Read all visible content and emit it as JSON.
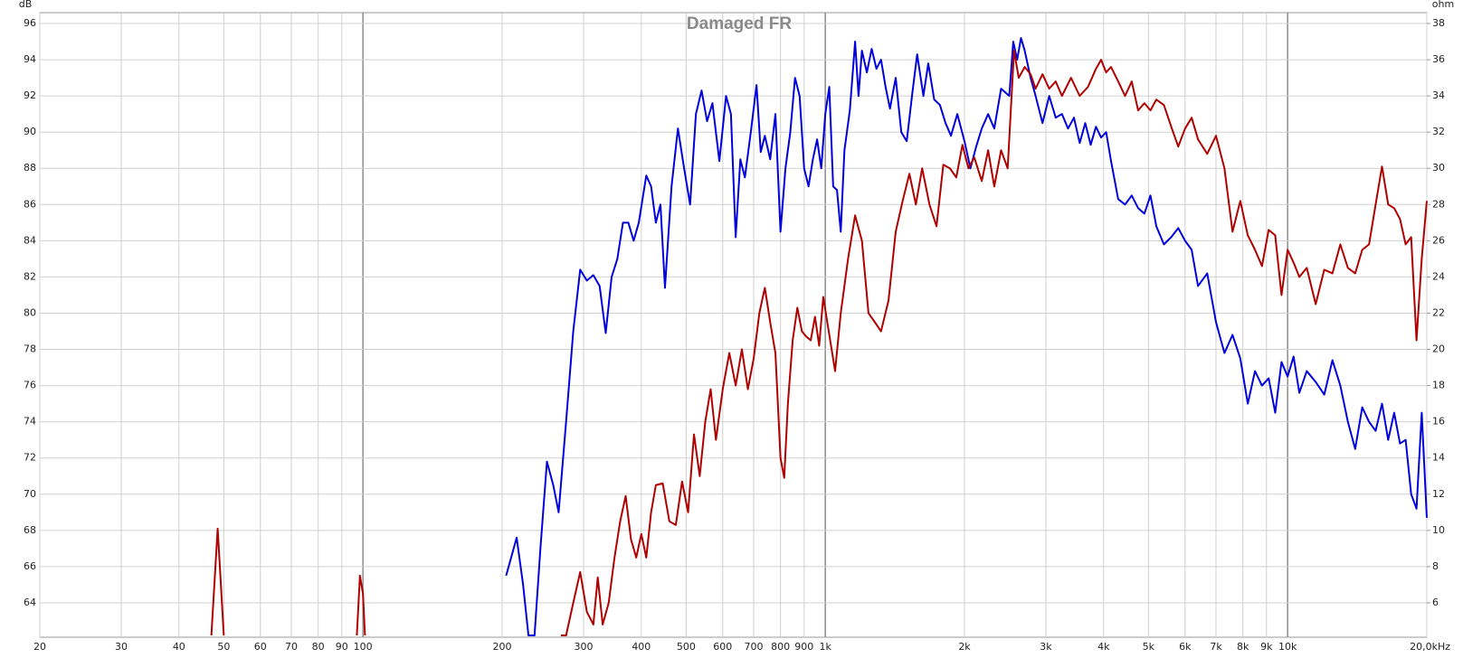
{
  "chart_data": {
    "type": "line",
    "title": "Damaged FR",
    "ylabel": "dB",
    "y2label": "ohm",
    "xscale": "log",
    "grid": true,
    "xlim": [
      20,
      20000
    ],
    "xticks": [
      20,
      30,
      40,
      50,
      60,
      70,
      80,
      90,
      100,
      200,
      300,
      400,
      500,
      600,
      700,
      800,
      900,
      {
        "value": 1000,
        "label": "1k"
      },
      {
        "value": 2000,
        "label": "2k"
      },
      {
        "value": 3000,
        "label": "3k"
      },
      {
        "value": 4000,
        "label": "4k"
      },
      {
        "value": 5000,
        "label": "5k"
      },
      {
        "value": 6000,
        "label": "6k"
      },
      {
        "value": 7000,
        "label": "7k"
      },
      {
        "value": 8000,
        "label": "8k"
      },
      {
        "value": 9000,
        "label": "9k"
      },
      {
        "value": 10000,
        "label": "10k"
      },
      {
        "value": 20000,
        "label": "20,0kHz"
      }
    ],
    "ylim": [
      62.1,
      96.6
    ],
    "yticks": [
      64,
      66,
      68,
      70,
      72,
      74,
      76,
      78,
      80,
      82,
      84,
      86,
      88,
      90,
      92,
      94,
      96
    ],
    "y2lim": [
      4.1,
      38.6
    ],
    "y2ticks": [
      6,
      8,
      10,
      12,
      14,
      16,
      18,
      20,
      22,
      24,
      26,
      28,
      30,
      32,
      34,
      36,
      38
    ],
    "series": [
      {
        "color": "#0000dd",
        "x": [
          204,
          215,
          222,
          228,
          235,
          242,
          250,
          258,
          265,
          275,
          285,
          295,
          305,
          315,
          325,
          335,
          345,
          355,
          365,
          375,
          385,
          395,
          410,
          420,
          430,
          440,
          450,
          465,
          480,
          495,
          510,
          525,
          540,
          555,
          570,
          590,
          610,
          625,
          640,
          655,
          670,
          690,
          710,
          725,
          740,
          760,
          780,
          800,
          820,
          840,
          860,
          880,
          900,
          920,
          940,
          960,
          980,
          1000,
          1020,
          1040,
          1060,
          1080,
          1100,
          1130,
          1160,
          1180,
          1200,
          1230,
          1260,
          1290,
          1320,
          1350,
          1380,
          1420,
          1460,
          1500,
          1540,
          1580,
          1630,
          1670,
          1720,
          1770,
          1820,
          1870,
          1930,
          2000,
          2060,
          2120,
          2180,
          2250,
          2320,
          2400,
          2500,
          2550,
          2600,
          2650,
          2700,
          2780,
          2850,
          2950,
          3050,
          3150,
          3250,
          3350,
          3450,
          3550,
          3650,
          3750,
          3850,
          3950,
          4050,
          4150,
          4300,
          4450,
          4600,
          4750,
          4900,
          5050,
          5200,
          5400,
          5600,
          5800,
          6000,
          6200,
          6400,
          6700,
          7000,
          7300,
          7600,
          7900,
          8200,
          8500,
          8800,
          9100,
          9400,
          9700,
          10000,
          10300,
          10600,
          11000,
          11500,
          12000,
          12500,
          13000,
          13500,
          14000,
          14500,
          15000,
          15500,
          16000,
          16500,
          17000,
          17500,
          18000,
          18500,
          19000,
          19500,
          20000
        ],
        "values": [
          65.5,
          67.6,
          65,
          62.2,
          62.2,
          67,
          71.8,
          70.5,
          69,
          74,
          79,
          82.4,
          81.8,
          82.1,
          81.5,
          78.9,
          82,
          83,
          85,
          85,
          84,
          85,
          87.6,
          87,
          85,
          86,
          81.4,
          87,
          90.2,
          88,
          86,
          91,
          92.3,
          90.6,
          91.6,
          88.4,
          92,
          91,
          84.2,
          88.5,
          87.5,
          90,
          92.6,
          88.9,
          89.8,
          88.5,
          91,
          84.5,
          88,
          90,
          93,
          92,
          88,
          87,
          88.5,
          89.6,
          88,
          91,
          92.5,
          87,
          86.8,
          84.5,
          89,
          91.2,
          95,
          92,
          94.5,
          93.3,
          94.6,
          93.5,
          94,
          92.5,
          91.3,
          93,
          90,
          89.5,
          92,
          94.3,
          92,
          93.8,
          91.8,
          91.5,
          90.5,
          89.8,
          91,
          89.5,
          88,
          89.2,
          90.2,
          91,
          90.2,
          92.4,
          92,
          95,
          94,
          95.2,
          94.5,
          93,
          92,
          90.5,
          92,
          90.8,
          91,
          90.2,
          90.8,
          89.4,
          90.5,
          89.3,
          90.3,
          89.7,
          90,
          88.4,
          86.3,
          86,
          86.5,
          85.8,
          85.5,
          86.5,
          84.8,
          83.8,
          84.2,
          84.7,
          84,
          83.5,
          81.5,
          82.2,
          79.5,
          77.8,
          78.8,
          77.5,
          75,
          76.8,
          76,
          76.4,
          74.5,
          77.3,
          76.5,
          77.6,
          75.6,
          76.8,
          76.2,
          75.5,
          77.4,
          76,
          74,
          72.5,
          74.8,
          74,
          73.5,
          75,
          73,
          74.5,
          72.8,
          73,
          70,
          69.2,
          74.5,
          68.7
        ]
      },
      {
        "color": "#b00000",
        "x": [
          47,
          48.5,
          50,
          70,
          97,
          98.5,
          100,
          101,
          180,
          268,
          275,
          285,
          295,
          305,
          315,
          322,
          330,
          340,
          350,
          360,
          370,
          380,
          390,
          400,
          410,
          420,
          430,
          445,
          460,
          475,
          490,
          505,
          520,
          535,
          550,
          565,
          580,
          600,
          620,
          640,
          660,
          680,
          700,
          720,
          740,
          760,
          780,
          800,
          815,
          830,
          850,
          870,
          890,
          910,
          930,
          950,
          970,
          990,
          1010,
          1050,
          1080,
          1120,
          1160,
          1200,
          1240,
          1280,
          1320,
          1370,
          1420,
          1470,
          1520,
          1570,
          1620,
          1680,
          1740,
          1800,
          1860,
          1920,
          1980,
          2040,
          2100,
          2180,
          2250,
          2320,
          2400,
          2480,
          2560,
          2620,
          2700,
          2780,
          2850,
          2950,
          3050,
          3150,
          3250,
          3400,
          3550,
          3700,
          3850,
          3950,
          4050,
          4150,
          4300,
          4450,
          4600,
          4750,
          4900,
          5050,
          5200,
          5400,
          5600,
          5800,
          6000,
          6200,
          6400,
          6700,
          7000,
          7300,
          7600,
          7900,
          8200,
          8500,
          8800,
          9100,
          9400,
          9700,
          10000,
          10300,
          10600,
          11000,
          11500,
          12000,
          12500,
          13000,
          13500,
          14000,
          14500,
          15000,
          15500,
          16000,
          16500,
          17000,
          17500,
          18000,
          18500,
          19000,
          19500,
          20000
        ],
        "values": [
          62.2,
          68.1,
          62.2,
          null,
          62.2,
          65.5,
          64.5,
          62.2,
          null,
          62.2,
          62.2,
          64,
          65.7,
          63.5,
          62.8,
          65.4,
          62.8,
          64,
          66.5,
          68.5,
          69.9,
          67.5,
          66.5,
          67.8,
          66.5,
          69,
          70.5,
          70.6,
          68.5,
          68.3,
          70.7,
          69,
          73.3,
          71,
          74,
          75.8,
          73,
          75.8,
          77.8,
          76,
          78,
          75.8,
          77.5,
          80,
          81.4,
          79.5,
          77.8,
          72,
          70.9,
          75,
          78.5,
          80.3,
          79,
          78.7,
          78.5,
          79.8,
          78.2,
          80.9,
          79.5,
          76.8,
          80,
          83,
          85.4,
          84,
          80,
          79.5,
          79,
          80.7,
          84.5,
          86.2,
          87.7,
          86,
          88,
          86,
          84.8,
          88.2,
          88,
          87.5,
          89.3,
          88,
          88.6,
          87.3,
          89,
          87,
          89,
          88,
          94.5,
          93,
          93.6,
          93.2,
          92.4,
          93.2,
          92.4,
          92.8,
          92,
          93,
          92,
          92.5,
          93.5,
          94,
          93.3,
          93.6,
          92.8,
          92,
          92.8,
          91.2,
          91.6,
          91.2,
          91.8,
          91.5,
          90.3,
          89.2,
          90.2,
          90.8,
          89.6,
          88.8,
          89.8,
          88,
          84.5,
          86.2,
          84.3,
          83.5,
          82.6,
          84.6,
          84.3,
          81,
          83.5,
          82.8,
          82,
          82.5,
          80.5,
          82.4,
          82.2,
          83.8,
          82.5,
          82.2,
          83.5,
          83.8,
          86,
          88.1,
          86,
          85.8,
          85.2,
          83.8,
          84.2,
          78.5,
          83,
          86.2
        ]
      }
    ]
  }
}
